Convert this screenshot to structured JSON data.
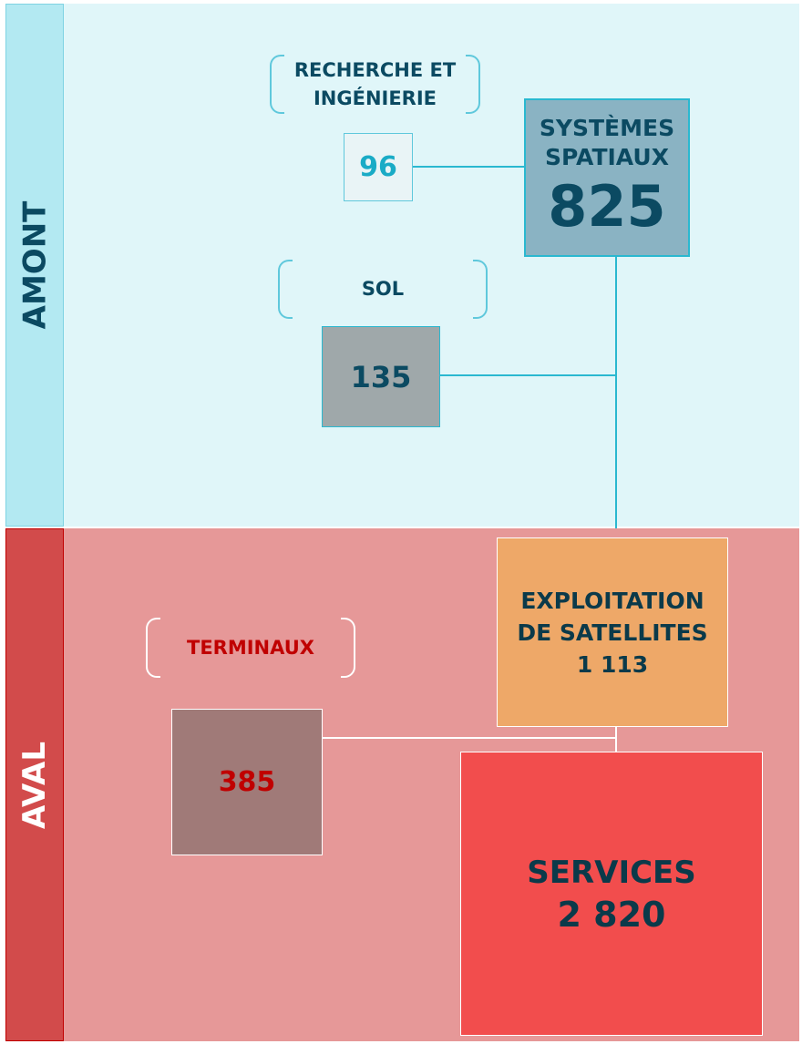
{
  "sections": {
    "upstream": "AMONT",
    "downstream": "AVAL"
  },
  "nodes": {
    "research": {
      "label": "RECHERCHE ET INGÉNIERIE",
      "label_line1": "RECHERCHE ET",
      "label_line2": "INGÉNIERIE",
      "value": "96"
    },
    "space_systems": {
      "label_line1": "SYSTÈMES",
      "label_line2": "SPATIAUX",
      "value": "825"
    },
    "ground": {
      "label": "SOL",
      "value": "135"
    },
    "satellite_ops": {
      "label_line1": "EXPLOITATION",
      "label_line2": "DE SATELLITES",
      "value": "1 113"
    },
    "terminals": {
      "label": "TERMINAUX",
      "value": "385"
    },
    "services": {
      "label": "SERVICES",
      "value": "2 820"
    }
  },
  "colors": {
    "upstream_bg": "#e0f6f9",
    "downstream_bg": "#e69898",
    "space_systems": "#8ab3c3",
    "ground": "#9fa8aa",
    "satellite_ops": "#eea868",
    "terminals": "#a07a78",
    "services": "#f24d4d",
    "dark_text": "#0b4a62",
    "red_text": "#c00000"
  }
}
